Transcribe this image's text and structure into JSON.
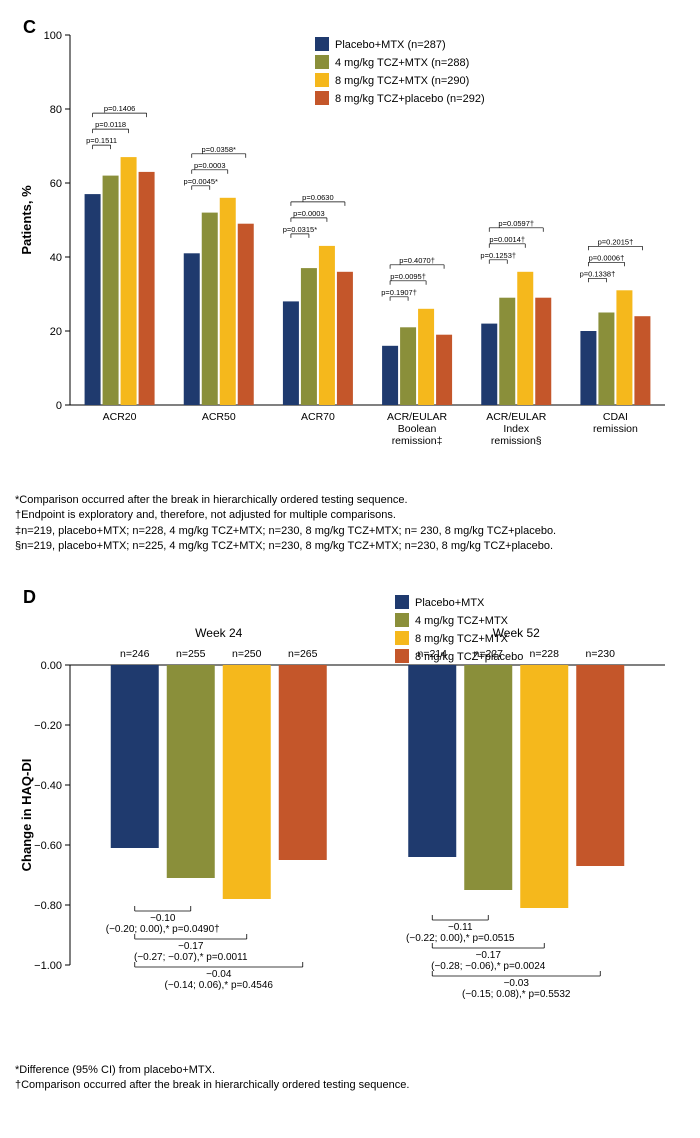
{
  "colors": {
    "placebo": "#1f3a6e",
    "tcz4": "#8a8f3a",
    "tcz8": "#f5b81c",
    "tcz8p": "#c4562a",
    "axis": "#000000",
    "text": "#000000",
    "bg": "#ffffff"
  },
  "panelC": {
    "label": "C",
    "ylabel": "Patients, %",
    "ylim": [
      0,
      100
    ],
    "ytick": 20,
    "legend": [
      {
        "label": "Placebo+MTX (n=287)",
        "color": "#1f3a6e"
      },
      {
        "label": "4 mg/kg TCZ+MTX (n=288)",
        "color": "#8a8f3a"
      },
      {
        "label": "8 mg/kg TCZ+MTX (n=290)",
        "color": "#f5b81c"
      },
      {
        "label": "8 mg/kg TCZ+placebo (n=292)",
        "color": "#c4562a"
      }
    ],
    "categories": [
      {
        "name": "ACR20",
        "vals": [
          57,
          62,
          67,
          63
        ],
        "p": [
          "p=0.1511",
          "p=0.0118",
          "p=0.1406"
        ]
      },
      {
        "name": "ACR50",
        "vals": [
          41,
          52,
          56,
          49
        ],
        "p": [
          "p=0.0045*",
          "p=0.0003",
          "p=0.0358*"
        ]
      },
      {
        "name": "ACR70",
        "vals": [
          28,
          37,
          43,
          36
        ],
        "p": [
          "p=0.0315*",
          "p=0.0003",
          "p=0.0630"
        ]
      },
      {
        "name": "ACR/EULAR Boolean remission‡",
        "vals": [
          16,
          21,
          26,
          19
        ],
        "p": [
          "p=0.1907†",
          "p=0.0095†",
          "p=0.4070†"
        ]
      },
      {
        "name": "ACR/EULAR Index remission§",
        "vals": [
          22,
          29,
          36,
          29
        ],
        "p": [
          "p=0.1253†",
          "p=0.0014†",
          "p=0.0597†"
        ]
      },
      {
        "name": "CDAI remission",
        "vals": [
          20,
          25,
          31,
          24
        ],
        "p": [
          "p=0.1338†",
          "p=0.0006†",
          "p=0.2015†"
        ]
      }
    ],
    "footnotes": [
      "*Comparison occurred after the break in hierarchically ordered testing sequence.",
      "†Endpoint is exploratory and, therefore, not adjusted for multiple comparisons.",
      "‡n=219, placebo+MTX; n=228, 4 mg/kg TCZ+MTX; n=230, 8 mg/kg TCZ+MTX; n= 230, 8 mg/kg TCZ+placebo.",
      "§n=219, placebo+MTX; n=225, 4 mg/kg TCZ+MTX; n=230, 8 mg/kg TCZ+MTX; n=230, 8 mg/kg TCZ+placebo."
    ]
  },
  "panelD": {
    "label": "D",
    "ylabel": "Change in HAQ-DI",
    "ylim": [
      -1.0,
      0.0
    ],
    "ytick": 0.2,
    "legend": [
      {
        "label": "Placebo+MTX",
        "color": "#1f3a6e"
      },
      {
        "label": "4 mg/kg TCZ+MTX",
        "color": "#8a8f3a"
      },
      {
        "label": "8 mg/kg TCZ+MTX",
        "color": "#f5b81c"
      },
      {
        "label": "8 mg/kg TCZ+placebo",
        "color": "#c4562a"
      }
    ],
    "groups": [
      {
        "title": "Week 24",
        "n": [
          "n=246",
          "n=255",
          "n=250",
          "n=265"
        ],
        "vals": [
          -0.61,
          -0.71,
          -0.78,
          -0.65
        ],
        "annot": [
          {
            "t1": "−0.10",
            "t2": "(−0.20; 0.00),* p=0.0490†"
          },
          {
            "t1": "−0.17",
            "t2": "(−0.27; −0.07),* p=0.0011"
          },
          {
            "t1": "−0.04",
            "t2": "(−0.14; 0.06),* p=0.4546"
          }
        ]
      },
      {
        "title": "Week 52",
        "n": [
          "n=214",
          "n=227",
          "n=228",
          "n=230"
        ],
        "vals": [
          -0.64,
          -0.75,
          -0.81,
          -0.67
        ],
        "annot": [
          {
            "t1": "−0.11",
            "t2": "(−0.22; 0.00),* p=0.0515"
          },
          {
            "t1": "−0.17",
            "t2": "(−0.28;  −0.06),* p=0.0024"
          },
          {
            "t1": "−0.03",
            "t2": "(−0.15; 0.08),* p=0.5532"
          }
        ]
      }
    ],
    "footnotes": [
      "*Difference (95% CI) from placebo+MTX.",
      "†Comparison occurred after the break in hierarchically ordered testing sequence."
    ]
  }
}
